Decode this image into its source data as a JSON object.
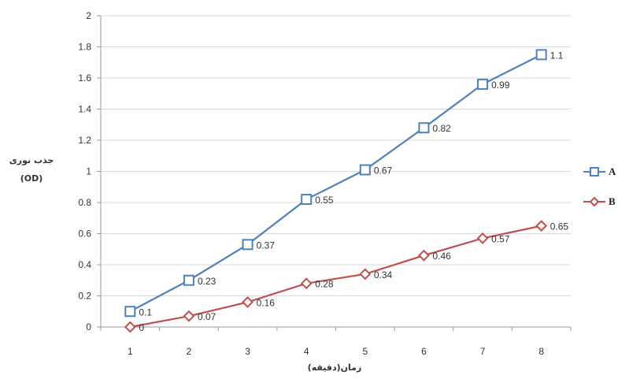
{
  "chart_data": {
    "type": "line",
    "x": [
      1,
      2,
      3,
      4,
      5,
      6,
      7,
      8
    ],
    "x_tick_labels": [
      "1",
      "2",
      "3",
      "4",
      "5",
      "6",
      "7",
      "8"
    ],
    "ylim": [
      0,
      2
    ],
    "y_ticks": [
      "0",
      "0.2",
      "0.4",
      "0.6",
      "0.8",
      "1",
      "1.2",
      "1.4",
      "1.6",
      "1.8",
      "2"
    ],
    "grid": "horizontal",
    "legend_position": "right",
    "xlabel": "زمان(دقیقه)",
    "ylabel": [
      "جذب نوری",
      "(OD)"
    ],
    "series": [
      {
        "name": "A",
        "color": "#4f81bd",
        "marker": "square",
        "values": [
          0.1,
          0.3,
          0.53,
          0.82,
          1.01,
          1.28,
          1.56,
          1.75
        ],
        "data_labels": [
          "0.1",
          "0.23",
          "0.37",
          "0.55",
          "0.67",
          "0.82",
          "0.99",
          "1.1"
        ]
      },
      {
        "name": "B",
        "color": "#c0504d",
        "marker": "diamond",
        "values": [
          0,
          0.07,
          0.16,
          0.28,
          0.34,
          0.46,
          0.57,
          0.65
        ],
        "data_labels": [
          "0",
          "0.07",
          "0.16",
          "0.28",
          "0.34",
          "0.46",
          "0.57",
          "0.65"
        ]
      }
    ]
  }
}
